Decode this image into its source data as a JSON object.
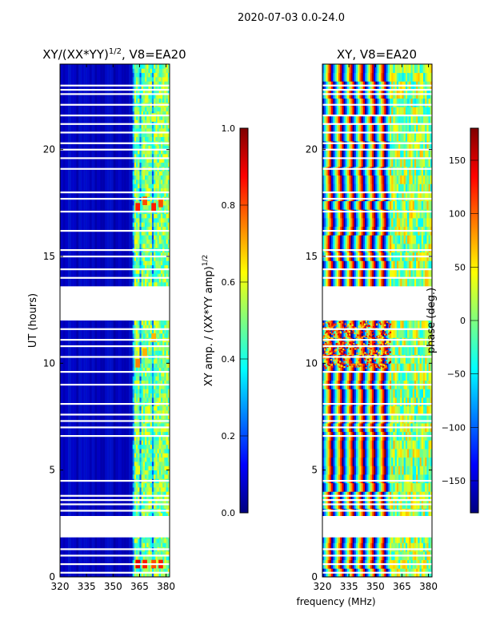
{
  "figure_title": "2020-07-03 0.0-24.0",
  "shared_xlabel": "frequency (MHz)",
  "colors": {
    "jet": [
      "#00007f",
      "#0000ff",
      "#007fff",
      "#00ffff",
      "#7fff7f",
      "#ffff00",
      "#ff7f00",
      "#ff0000",
      "#7f0000"
    ],
    "deep_blue": "#00008b"
  },
  "chart_data": [
    {
      "type": "heatmap",
      "title_main": "XY/(XX*YY)",
      "title_sup": "1/2",
      "title_rest": ", V8=EA20",
      "xlabel": "",
      "ylabel": "UT (hours)",
      "xlim": [
        320,
        382
      ],
      "ylim": [
        0,
        24
      ],
      "xticks": [
        "320",
        "335",
        "350",
        "365",
        "380"
      ],
      "yticks": [
        "0",
        "5",
        "10",
        "15",
        "20"
      ],
      "colorbar": {
        "label_main": "XY amp. / (XX*YY amp)",
        "label_sup": "1/2",
        "range": [
          0.0,
          1.0
        ],
        "ticks": [
          "0.0",
          "0.2",
          "0.4",
          "0.6",
          "0.8",
          "1.0"
        ]
      },
      "data_gaps_hours": [
        [
          1.85,
          2.85
        ],
        [
          12.0,
          13.6
        ]
      ],
      "flagged_rows_hours": [
        0.2,
        0.6,
        1.0,
        1.3,
        3.1,
        3.4,
        3.6,
        3.8,
        4.5,
        6.6,
        7.0,
        7.3,
        7.6,
        8.1,
        9.0,
        9.6,
        10.3,
        10.8,
        11.1,
        11.6,
        14.0,
        14.4,
        15.0,
        15.3,
        16.2,
        17.1,
        17.7,
        18.0,
        19.1,
        19.6,
        20.0,
        20.3,
        20.8,
        21.2,
        21.6,
        22.1,
        22.6,
        22.8,
        23.0
      ],
      "bright_channels_MHz": [
        363,
        367,
        370,
        374,
        377,
        380
      ],
      "hot_spots": [
        {
          "f": 364,
          "t": 0.6,
          "v": 0.9
        },
        {
          "f": 368,
          "t": 0.6,
          "v": 0.85
        },
        {
          "f": 373,
          "t": 0.6,
          "v": 0.8
        },
        {
          "f": 377,
          "t": 0.6,
          "v": 0.85
        },
        {
          "f": 364,
          "t": 10.0,
          "v": 0.75
        },
        {
          "f": 368,
          "t": 10.5,
          "v": 0.7
        },
        {
          "f": 373,
          "t": 11.2,
          "v": 0.7
        },
        {
          "f": 364,
          "t": 17.3,
          "v": 0.85
        },
        {
          "f": 368,
          "t": 17.6,
          "v": 0.8
        },
        {
          "f": 373,
          "t": 17.3,
          "v": 0.85
        },
        {
          "f": 377,
          "t": 17.5,
          "v": 0.8
        },
        {
          "f": 364,
          "t": 5.0,
          "v": 0.6
        },
        {
          "f": 373,
          "t": 21.5,
          "v": 0.6
        }
      ]
    },
    {
      "type": "heatmap",
      "title_main": "XY, V8=EA20",
      "xlabel": "frequency (MHz)",
      "ylabel": "",
      "xlim": [
        320,
        382
      ],
      "ylim": [
        0,
        24
      ],
      "xticks": [
        "320",
        "335",
        "350",
        "365",
        "380"
      ],
      "yticks": [
        "0",
        "5",
        "10",
        "15",
        "20"
      ],
      "colorbar": {
        "label": "phase (deg.)",
        "range": [
          -180,
          180
        ],
        "ticks": [
          "−150",
          "−100",
          "−50",
          "0",
          "50",
          "100",
          "150"
        ]
      },
      "data_gaps_hours": [
        [
          1.85,
          2.85
        ],
        [
          12.0,
          13.6
        ]
      ],
      "flagged_rows_hours": [
        0.2,
        0.6,
        1.0,
        1.3,
        3.1,
        3.4,
        3.6,
        3.8,
        4.5,
        6.6,
        7.0,
        7.3,
        7.6,
        8.1,
        9.0,
        9.6,
        10.3,
        10.8,
        11.1,
        11.6,
        14.0,
        14.4,
        15.0,
        15.3,
        16.2,
        17.1,
        17.7,
        18.0,
        19.1,
        19.6,
        20.0,
        20.3,
        20.8,
        21.2,
        21.6,
        22.1,
        22.6,
        22.8,
        23.0
      ],
      "phase_stripe_period_MHz": 6,
      "noisy_region_hours": [
        9.8,
        12.0
      ],
      "noisy_region_MHz": [
        320,
        358
      ]
    }
  ]
}
